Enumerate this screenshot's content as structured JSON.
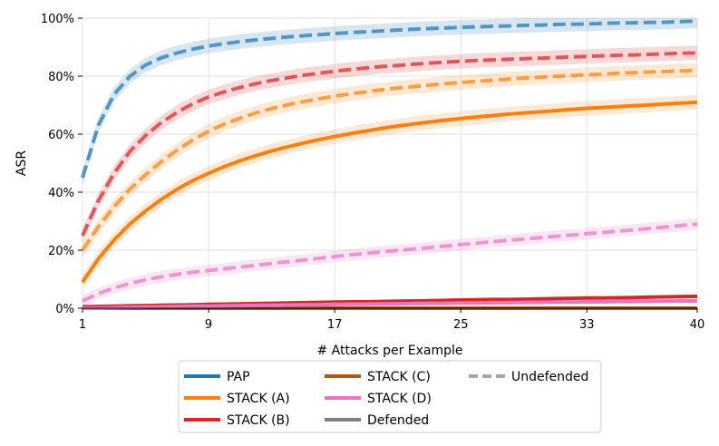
{
  "chart_data": {
    "type": "line",
    "title": "",
    "xlabel": "# Attacks per Example",
    "ylabel": "ASR",
    "xlim": [
      1,
      40
    ],
    "ylim": [
      0,
      100
    ],
    "x_ticks": [
      1,
      9,
      17,
      25,
      33,
      40
    ],
    "y_ticks": [
      0,
      20,
      40,
      60,
      80,
      100
    ],
    "y_tick_labels": [
      "0%",
      "20%",
      "40%",
      "60%",
      "80%",
      "100%"
    ],
    "grid": true,
    "legend_position": "bottom-center",
    "x": [
      1,
      2,
      3,
      4,
      5,
      6,
      7,
      8,
      9,
      10,
      11,
      12,
      13,
      14,
      15,
      16,
      17,
      18,
      19,
      20,
      21,
      22,
      23,
      24,
      25,
      26,
      27,
      28,
      29,
      30,
      31,
      32,
      33,
      34,
      35,
      36,
      37,
      38,
      39,
      40
    ],
    "series": [
      {
        "name": "PAP (Undefended)",
        "method": "PAP",
        "defended": false,
        "color": "#1f77b4",
        "band": 2.5,
        "values": [
          45.0,
          63.0,
          73.7,
          79.9,
          83.8,
          86.3,
          88.0,
          89.3,
          90.4,
          91.2,
          91.9,
          92.5,
          93.0,
          93.5,
          93.9,
          94.3,
          94.7,
          95.0,
          95.3,
          95.6,
          95.9,
          96.2,
          96.4,
          96.6,
          96.8,
          97.0,
          97.2,
          97.3,
          97.5,
          97.6,
          97.8,
          97.9,
          98.0,
          98.2,
          98.3,
          98.4,
          98.5,
          98.6,
          98.8,
          99.0
        ]
      },
      {
        "name": "STACK (A) (Undefended)",
        "method": "STACK (A)",
        "defended": false,
        "color": "#ff7f0e",
        "band": 2.5,
        "values": [
          20.0,
          28.0,
          35.0,
          41.0,
          46.0,
          50.5,
          54.5,
          58.0,
          61.0,
          63.5,
          65.5,
          67.3,
          68.8,
          70.1,
          71.2,
          72.2,
          73.1,
          73.9,
          74.6,
          75.3,
          75.9,
          76.4,
          76.9,
          77.4,
          77.8,
          78.2,
          78.6,
          79.0,
          79.3,
          79.6,
          79.9,
          80.2,
          80.5,
          80.7,
          81.0,
          81.2,
          81.4,
          81.6,
          81.8,
          82.0
        ]
      },
      {
        "name": "STACK (A) (Defended)",
        "method": "STACK (A)",
        "defended": true,
        "color": "#ff7f0e",
        "band": 2.5,
        "values": [
          9.0,
          17.0,
          23.5,
          29.0,
          33.5,
          37.5,
          41.0,
          44.0,
          46.5,
          48.8,
          50.8,
          52.6,
          54.2,
          55.6,
          56.9,
          58.1,
          59.2,
          60.2,
          61.1,
          62.0,
          62.8,
          63.5,
          64.2,
          64.8,
          65.4,
          65.9,
          66.4,
          66.9,
          67.3,
          67.7,
          68.1,
          68.5,
          68.9,
          69.2,
          69.5,
          69.8,
          70.1,
          70.4,
          70.7,
          71.0
        ]
      },
      {
        "name": "STACK (B) (Undefended)",
        "method": "STACK (B)",
        "defended": false,
        "color": "#d62728",
        "band": 2.5,
        "values": [
          25.0,
          37.0,
          46.5,
          54.0,
          59.5,
          64.0,
          67.5,
          70.5,
          72.8,
          74.6,
          76.1,
          77.4,
          78.5,
          79.4,
          80.3,
          81.0,
          81.7,
          82.3,
          82.8,
          83.3,
          83.7,
          84.1,
          84.5,
          84.8,
          85.1,
          85.4,
          85.6,
          85.8,
          86.0,
          86.2,
          86.4,
          86.6,
          86.8,
          87.0,
          87.2,
          87.3,
          87.5,
          87.7,
          87.9,
          88.0
        ]
      },
      {
        "name": "STACK (B) (Defended)",
        "method": "STACK (B)",
        "defended": true,
        "color": "#d62728",
        "band": 0.6,
        "values": [
          0.5,
          0.6,
          0.7,
          0.8,
          0.9,
          1.0,
          1.1,
          1.2,
          1.3,
          1.4,
          1.5,
          1.6,
          1.7,
          1.8,
          1.9,
          2.0,
          2.1,
          2.2,
          2.2,
          2.3,
          2.4,
          2.5,
          2.6,
          2.7,
          2.8,
          2.9,
          3.0,
          3.0,
          3.1,
          3.2,
          3.3,
          3.4,
          3.5,
          3.5,
          3.6,
          3.7,
          3.8,
          3.9,
          4.0,
          4.1
        ]
      },
      {
        "name": "STACK (C) (Defended)",
        "method": "STACK (C)",
        "defended": true,
        "color": "#b35806",
        "band": 0.2,
        "values": [
          0.0,
          0.0,
          0.0,
          0.0,
          0.0,
          0.0,
          0.0,
          0.0,
          0.0,
          0.0,
          0.0,
          0.0,
          0.0,
          0.0,
          0.0,
          0.0,
          0.0,
          0.0,
          0.0,
          0.0,
          0.0,
          0.0,
          0.0,
          0.0,
          0.0,
          0.0,
          0.0,
          0.0,
          0.0,
          0.0,
          0.0,
          0.0,
          0.0,
          0.0,
          0.0,
          0.0,
          0.0,
          0.0,
          0.0,
          0.0
        ]
      },
      {
        "name": "STACK (D) (Undefended)",
        "method": "STACK (D)",
        "defended": false,
        "color": "#e377c2",
        "band": 2.0,
        "values": [
          2.5,
          5.0,
          7.0,
          8.5,
          9.8,
          10.8,
          11.7,
          12.4,
          13.0,
          13.6,
          14.2,
          14.8,
          15.4,
          16.0,
          16.6,
          17.2,
          17.8,
          18.4,
          18.9,
          19.4,
          19.9,
          20.4,
          20.9,
          21.4,
          21.9,
          22.4,
          22.9,
          23.4,
          23.8,
          24.3,
          24.8,
          25.2,
          25.7,
          26.1,
          26.6,
          27.0,
          27.5,
          28.0,
          28.5,
          29.0
        ]
      },
      {
        "name": "STACK (D) (Defended)",
        "method": "STACK (D)",
        "defended": true,
        "color": "#e377c2",
        "band": 0.4,
        "values": [
          0.0,
          0.1,
          0.2,
          0.3,
          0.4,
          0.5,
          0.6,
          0.7,
          0.7,
          0.8,
          0.9,
          1.0,
          1.0,
          1.1,
          1.2,
          1.2,
          1.3,
          1.4,
          1.4,
          1.5,
          1.5,
          1.6,
          1.7,
          1.7,
          1.8,
          1.8,
          1.9,
          1.9,
          2.0,
          2.0,
          2.1,
          2.1,
          2.2,
          2.2,
          2.3,
          2.3,
          2.4,
          2.4,
          2.5,
          2.5
        ]
      }
    ],
    "legend": {
      "methods": [
        {
          "label": "PAP",
          "color": "#1f77b4"
        },
        {
          "label": "STACK (A)",
          "color": "#ff7f0e"
        },
        {
          "label": "STACK (B)",
          "color": "#d62728"
        },
        {
          "label": "STACK (C)",
          "color": "#b35806"
        },
        {
          "label": "STACK (D)",
          "color": "#e377c2"
        }
      ],
      "styles": [
        {
          "label": "Defended",
          "style": "solid",
          "color": "#7f7f7f"
        },
        {
          "label": "Undefended",
          "style": "dashed",
          "color": "#a6a6a6"
        }
      ]
    }
  }
}
